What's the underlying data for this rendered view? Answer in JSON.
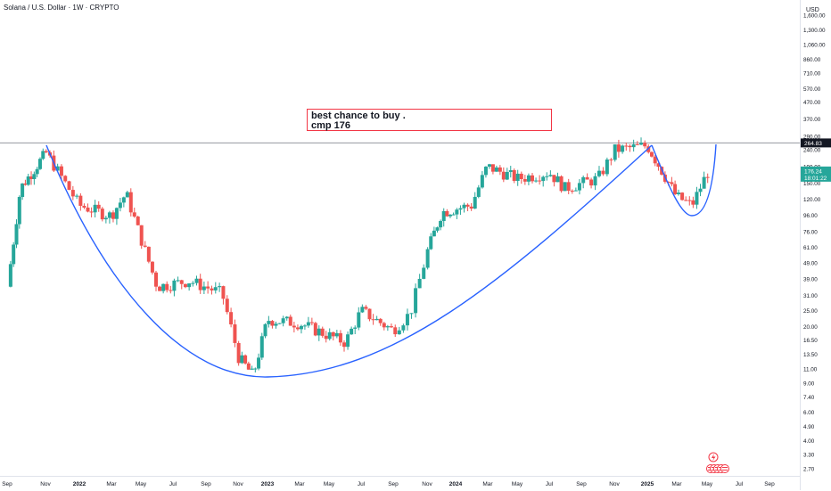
{
  "header": {
    "title": "Solana / U.S. Dollar · 1W · CRYPTO"
  },
  "axis": {
    "currency": "USD",
    "price_ticks": [
      "1,600.00",
      "1,300.00",
      "1,060.00",
      "860.00",
      "710.00",
      "570.00",
      "470.00",
      "370.00",
      "290.00",
      "240.00",
      "190.00",
      "150.00",
      "120.00",
      "96.00",
      "76.00",
      "61.00",
      "49.00",
      "39.00",
      "31.00",
      "25.00",
      "20.00",
      "16.50",
      "13.50",
      "11.00",
      "9.00",
      "7.40",
      "6.00",
      "4.90",
      "4.00",
      "3.30",
      "2.70"
    ],
    "time_ticks": [
      "Sep",
      "Nov",
      "2022",
      "Mar",
      "May",
      "Jul",
      "Sep",
      "Nov",
      "2023",
      "Mar",
      "May",
      "Jul",
      "Sep",
      "Nov",
      "2024",
      "Mar",
      "May",
      "Jul",
      "Sep",
      "Nov",
      "2025",
      "Mar",
      "May",
      "Jul",
      "Sep"
    ],
    "bold_time_ticks": [
      "2022",
      "2023",
      "2024",
      "2025"
    ]
  },
  "price_labels": {
    "horizontal_line": "264.83",
    "current_price": "176.24",
    "countdown": "18:01:22"
  },
  "annotation": {
    "line1": "best chance to buy .",
    "line2": "cmp 176"
  },
  "colors": {
    "up": "#26a69a",
    "down": "#ef5350",
    "pattern_line": "#2962ff",
    "note_border": "#f23645",
    "hline": "#9598a1",
    "axis_text": "#131722"
  },
  "icons": {
    "flash": "lightning-bolt-icon",
    "flags": "us-flag-icon"
  },
  "chart_data": {
    "type": "candlestick",
    "title": "Solana / U.S. Dollar · 1W · CRYPTO",
    "y_scale": "log",
    "ylabel": "USD",
    "ylim": [
      2.5,
      1800
    ],
    "horizontal_line": 264.83,
    "last_price": 176.24,
    "series": [
      {
        "date": "2021-08",
        "close": 35
      },
      {
        "date": "2021-09",
        "close": 140
      },
      {
        "date": "2021-10",
        "close": 180
      },
      {
        "date": "2021-11",
        "close": 230
      },
      {
        "date": "2022-01",
        "close": 110
      },
      {
        "date": "2022-03",
        "close": 95
      },
      {
        "date": "2022-04",
        "close": 130
      },
      {
        "date": "2022-06",
        "close": 35
      },
      {
        "date": "2022-08",
        "close": 38
      },
      {
        "date": "2022-10",
        "close": 32
      },
      {
        "date": "2022-11",
        "close": 13
      },
      {
        "date": "2022-12",
        "close": 10
      },
      {
        "date": "2023-01",
        "close": 22
      },
      {
        "date": "2023-03",
        "close": 21
      },
      {
        "date": "2023-06",
        "close": 16
      },
      {
        "date": "2023-07",
        "close": 25
      },
      {
        "date": "2023-09",
        "close": 19
      },
      {
        "date": "2023-10",
        "close": 24
      },
      {
        "date": "2023-11",
        "close": 58
      },
      {
        "date": "2023-12",
        "close": 100
      },
      {
        "date": "2024-02",
        "close": 110
      },
      {
        "date": "2024-03",
        "close": 190
      },
      {
        "date": "2024-05",
        "close": 160
      },
      {
        "date": "2024-07",
        "close": 175
      },
      {
        "date": "2024-08",
        "close": 140
      },
      {
        "date": "2024-10",
        "close": 160
      },
      {
        "date": "2024-11",
        "close": 240
      },
      {
        "date": "2025-01",
        "close": 255
      },
      {
        "date": "2025-02",
        "close": 180
      },
      {
        "date": "2025-03",
        "close": 125
      },
      {
        "date": "2025-04",
        "close": 110
      },
      {
        "date": "2025-05",
        "close": 176.24
      }
    ]
  }
}
